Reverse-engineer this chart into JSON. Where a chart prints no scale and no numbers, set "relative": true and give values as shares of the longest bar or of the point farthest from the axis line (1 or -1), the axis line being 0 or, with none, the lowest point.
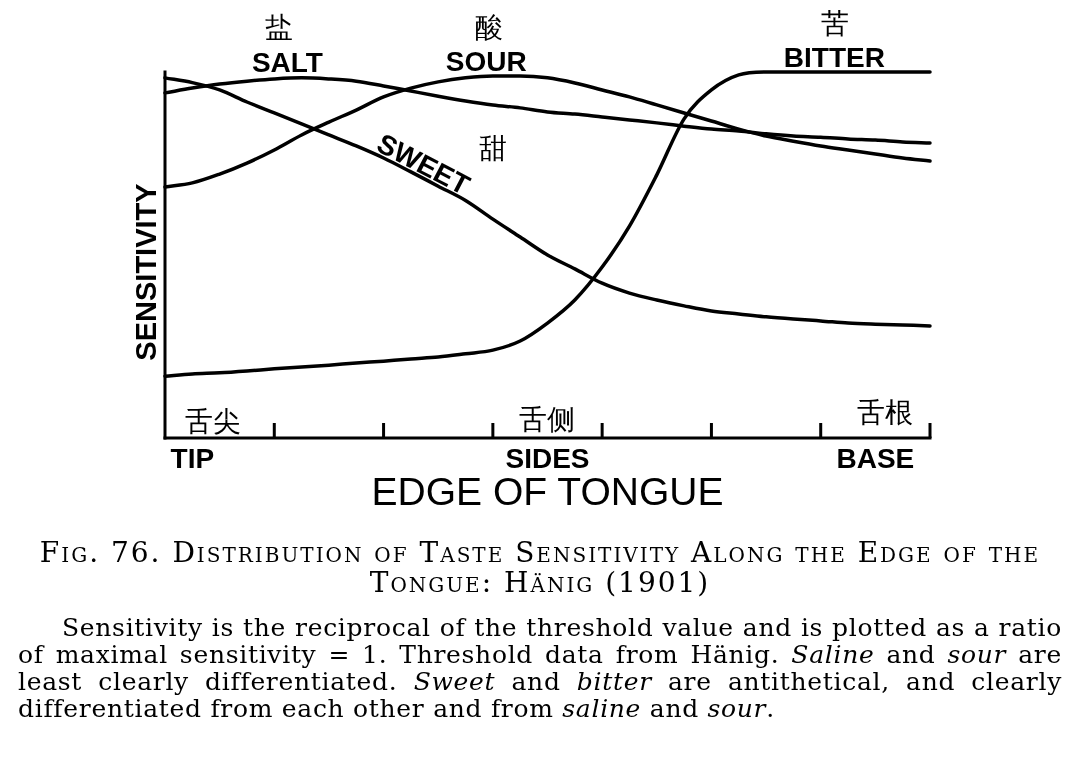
{
  "chart_data": {
    "type": "line",
    "relative": true,
    "xlabel": "EDGE OF TONGUE",
    "ylabel": "SENSITIVITY",
    "categories": [
      null,
      "TIP",
      null,
      null,
      null,
      null,
      null,
      null,
      null,
      null,
      null,
      null,
      null,
      null,
      "SIDES",
      null,
      null,
      null,
      null,
      null,
      null,
      null,
      null,
      null,
      null,
      null,
      "BASE",
      null,
      null
    ],
    "series": [
      {
        "name": "SALT",
        "color": "#000000",
        "values": [
          0.943,
          0.956,
          0.967,
          0.975,
          0.981,
          0.984,
          0.981,
          0.975,
          0.962,
          0.948,
          0.934,
          0.921,
          0.91,
          0.902,
          0.891,
          0.885,
          0.877,
          0.869,
          0.861,
          0.852,
          0.844,
          0.839,
          0.831,
          0.825,
          0.822,
          0.817,
          0.814,
          0.809,
          0.806
        ]
      },
      {
        "name": "SOUR",
        "color": "#000000",
        "values": [
          0.686,
          0.697,
          0.721,
          0.751,
          0.787,
          0.828,
          0.863,
          0.896,
          0.932,
          0.956,
          0.973,
          0.984,
          0.989,
          0.989,
          0.984,
          0.97,
          0.951,
          0.932,
          0.91,
          0.888,
          0.866,
          0.844,
          0.825,
          0.811,
          0.798,
          0.787,
          0.776,
          0.765,
          0.757
        ]
      },
      {
        "name": "SWEET",
        "color": "#000000",
        "values": [
          0.984,
          0.971,
          0.951,
          0.918,
          0.888,
          0.858,
          0.828,
          0.798,
          0.765,
          0.727,
          0.688,
          0.649,
          0.598,
          0.549,
          0.5,
          0.462,
          0.423,
          0.396,
          0.377,
          0.361,
          0.347,
          0.339,
          0.331,
          0.325,
          0.32,
          0.314,
          0.311,
          0.309,
          0.306
        ]
      },
      {
        "name": "BITTER",
        "color": "#000000",
        "values": [
          0.169,
          0.175,
          0.178,
          0.183,
          0.189,
          0.194,
          0.199,
          0.205,
          0.21,
          0.216,
          0.221,
          0.23,
          0.24,
          0.265,
          0.314,
          0.377,
          0.467,
          0.579,
          0.719,
          0.872,
          0.951,
          0.992,
          1,
          1,
          1,
          1,
          1,
          1,
          1
        ]
      }
    ],
    "annotations": [
      "盐",
      "酸",
      "甜",
      "苦",
      "舌尖",
      "舌侧",
      "舌根",
      "Fig. 76. Distribution of Taste Sensitivity Along the Edge of the Tongue: Hänig (1901)",
      "Sensitivity is the reciprocal of the threshold value and is plotted as a ratio of maximal sensitivity = 1. Threshold data from Hänig. *Saline* and *sour* are least clearly differentiated. *Sweet* and *bitter* are antithetical, and clearly differentiated from each other and from *saline* and *sour*."
    ]
  }
}
